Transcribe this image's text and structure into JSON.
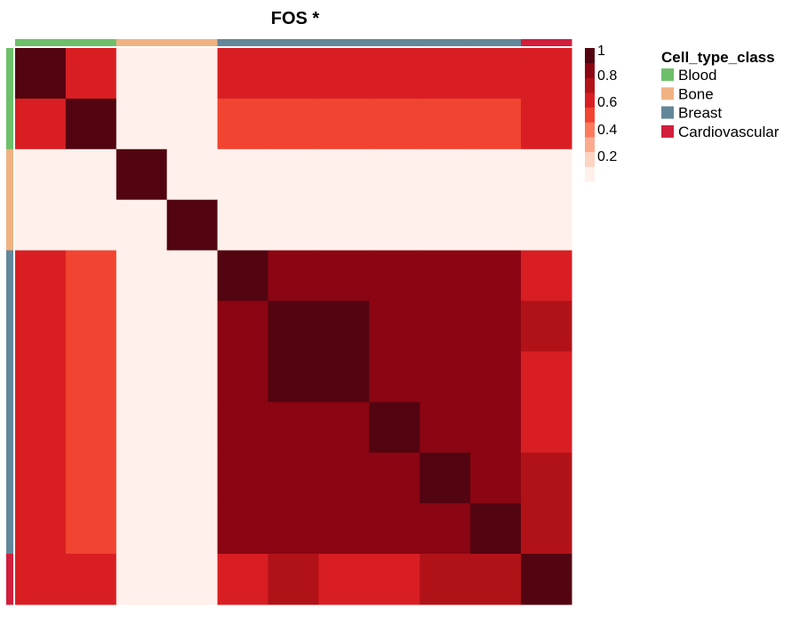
{
  "chart_data": {
    "type": "heatmap",
    "title": "FOS *",
    "n": 11,
    "values": [
      [
        1.0,
        0.65,
        0.0,
        0.0,
        0.65,
        0.65,
        0.65,
        0.65,
        0.65,
        0.65,
        0.65
      ],
      [
        0.65,
        1.0,
        0.0,
        0.0,
        0.55,
        0.55,
        0.55,
        0.55,
        0.55,
        0.55,
        0.65
      ],
      [
        0.0,
        0.0,
        1.0,
        0.0,
        0.0,
        0.0,
        0.0,
        0.0,
        0.0,
        0.0,
        0.0
      ],
      [
        0.0,
        0.0,
        0.0,
        1.0,
        0.0,
        0.0,
        0.0,
        0.0,
        0.0,
        0.0,
        0.0
      ],
      [
        0.65,
        0.55,
        0.0,
        0.0,
        1.0,
        0.9,
        0.9,
        0.9,
        0.9,
        0.9,
        0.65
      ],
      [
        0.65,
        0.55,
        0.0,
        0.0,
        0.9,
        1.0,
        1.0,
        0.9,
        0.9,
        0.9,
        0.75
      ],
      [
        0.65,
        0.55,
        0.0,
        0.0,
        0.9,
        1.0,
        1.0,
        0.9,
        0.9,
        0.9,
        0.65
      ],
      [
        0.65,
        0.55,
        0.0,
        0.0,
        0.9,
        0.9,
        0.9,
        1.0,
        0.9,
        0.9,
        0.65
      ],
      [
        0.65,
        0.55,
        0.0,
        0.0,
        0.9,
        0.9,
        0.9,
        0.9,
        1.0,
        0.9,
        0.75
      ],
      [
        0.65,
        0.55,
        0.0,
        0.0,
        0.9,
        0.9,
        0.9,
        0.9,
        0.9,
        1.0,
        0.75
      ],
      [
        0.65,
        0.65,
        0.0,
        0.0,
        0.65,
        0.75,
        0.65,
        0.65,
        0.75,
        0.75,
        1.0
      ]
    ],
    "annotation_classes": [
      "Blood",
      "Blood",
      "Bone",
      "Bone",
      "Breast",
      "Breast",
      "Breast",
      "Breast",
      "Breast",
      "Breast",
      "Cardiovascular"
    ],
    "color_scale": {
      "ticks": [
        "1",
        "0.8",
        "0.6",
        "0.4",
        "0.2"
      ],
      "range": [
        0.0,
        1.0
      ],
      "colors": [
        "#fff0eb",
        "#fdd3c1",
        "#fcaa8e",
        "#fb7a5c",
        "#f14431",
        "#d81e23",
        "#b11218",
        "#8b0512",
        "#520510"
      ]
    },
    "legend": {
      "title": "Cell_type_class",
      "placement": "right",
      "items": [
        {
          "label": "Blood",
          "color": "#6dbf6a"
        },
        {
          "label": "Bone",
          "color": "#f0b283"
        },
        {
          "label": "Breast",
          "color": "#63879a"
        },
        {
          "label": "Cardiovascular",
          "color": "#d11f3c"
        }
      ]
    }
  }
}
